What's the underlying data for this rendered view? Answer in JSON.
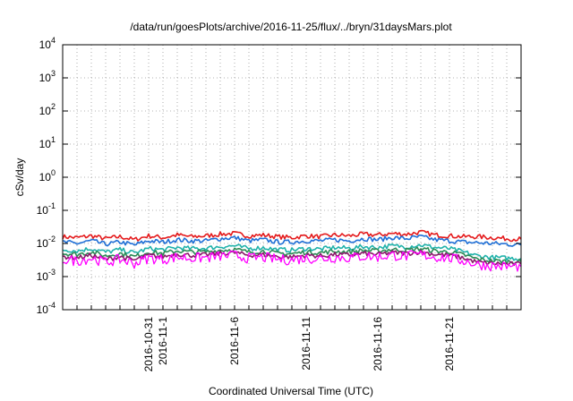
{
  "chart_data": {
    "type": "line",
    "title": "/data/run/goesPlots/archive/2016-11-25/flux/../bryn/31daysMars.plot",
    "xlabel": "Coordinated Universal Time (UTC)",
    "ylabel": "cSv/day",
    "yscale": "log",
    "ylim": [
      0.0001,
      10000
    ],
    "yticks": [
      {
        "value": 0.0001,
        "base": "10",
        "exp": "-4"
      },
      {
        "value": 0.001,
        "base": "10",
        "exp": "-3"
      },
      {
        "value": 0.01,
        "base": "10",
        "exp": "-2"
      },
      {
        "value": 0.1,
        "base": "10",
        "exp": "-1"
      },
      {
        "value": 1,
        "base": "10",
        "exp": "0"
      },
      {
        "value": 10,
        "base": "10",
        "exp": "1"
      },
      {
        "value": 100,
        "base": "10",
        "exp": "2"
      },
      {
        "value": 1000,
        "base": "10",
        "exp": "3"
      },
      {
        "value": 10000,
        "base": "10",
        "exp": "4"
      }
    ],
    "xlim": [
      "2016-10-25",
      "2016-11-26"
    ],
    "xticks": [
      {
        "date": "2016-10-31",
        "label": "2016-10-31"
      },
      {
        "date": "2016-11-01",
        "label": "2016-11-1"
      },
      {
        "date": "2016-11-06",
        "label": "2016-11-6"
      },
      {
        "date": "2016-11-11",
        "label": "2016-11-11"
      },
      {
        "date": "2016-11-16",
        "label": "2016-11-16"
      },
      {
        "date": "2016-11-21",
        "label": "2016-11-21"
      }
    ],
    "grid": true,
    "series_dates": [
      "2016-10-25",
      "2016-10-26",
      "2016-10-27",
      "2016-10-28",
      "2016-10-29",
      "2016-10-30",
      "2016-10-31",
      "2016-11-01",
      "2016-11-02",
      "2016-11-03",
      "2016-11-04",
      "2016-11-05",
      "2016-11-06",
      "2016-11-07",
      "2016-11-08",
      "2016-11-09",
      "2016-11-10",
      "2016-11-11",
      "2016-11-12",
      "2016-11-13",
      "2016-11-14",
      "2016-11-15",
      "2016-11-16",
      "2016-11-17",
      "2016-11-18",
      "2016-11-19",
      "2016-11-20",
      "2016-11-21",
      "2016-11-22",
      "2016-11-23",
      "2016-11-24",
      "2016-11-25",
      "2016-11-26"
    ],
    "series": [
      {
        "color": "#e41a1c",
        "values": [
          0.016,
          0.015,
          0.017,
          0.014,
          0.016,
          0.013,
          0.017,
          0.015,
          0.018,
          0.016,
          0.017,
          0.019,
          0.02,
          0.017,
          0.018,
          0.016,
          0.015,
          0.017,
          0.016,
          0.018,
          0.017,
          0.019,
          0.018,
          0.02,
          0.019,
          0.022,
          0.018,
          0.017,
          0.016,
          0.016,
          0.015,
          0.014,
          0.0135
        ]
      },
      {
        "color": "#1f6fd6",
        "values": [
          0.011,
          0.01,
          0.012,
          0.0095,
          0.011,
          0.009,
          0.012,
          0.011,
          0.013,
          0.012,
          0.012,
          0.014,
          0.015,
          0.012,
          0.013,
          0.011,
          0.011,
          0.012,
          0.012,
          0.013,
          0.012,
          0.014,
          0.013,
          0.015,
          0.014,
          0.016,
          0.013,
          0.012,
          0.011,
          0.0105,
          0.01,
          0.0095,
          0.009
        ]
      },
      {
        "color": "#20b2aa",
        "values": [
          0.0065,
          0.006,
          0.007,
          0.0055,
          0.0065,
          0.0052,
          0.007,
          0.0065,
          0.0075,
          0.007,
          0.0072,
          0.008,
          0.0085,
          0.007,
          0.0075,
          0.0065,
          0.0063,
          0.007,
          0.0068,
          0.0075,
          0.0072,
          0.008,
          0.0076,
          0.0085,
          0.008,
          0.009,
          0.0076,
          0.007,
          0.0055,
          0.0042,
          0.0038,
          0.0036,
          0.0035
        ]
      },
      {
        "color": "#2e8b57",
        "values": [
          0.005,
          0.0047,
          0.0055,
          0.0042,
          0.005,
          0.004,
          0.0055,
          0.005,
          0.006,
          0.0055,
          0.0056,
          0.0062,
          0.0066,
          0.0055,
          0.0058,
          0.005,
          0.0049,
          0.0055,
          0.0053,
          0.0058,
          0.0056,
          0.0062,
          0.0059,
          0.0066,
          0.0062,
          0.007,
          0.0059,
          0.0055,
          0.0045,
          0.0033,
          0.003,
          0.0029,
          0.0028
        ]
      },
      {
        "color": "#8b1a6b",
        "values": [
          0.004,
          0.0037,
          0.0044,
          0.0033,
          0.004,
          0.0031,
          0.0044,
          0.004,
          0.0048,
          0.0044,
          0.0045,
          0.005,
          0.0053,
          0.0044,
          0.0046,
          0.004,
          0.0039,
          0.0044,
          0.0042,
          0.0046,
          0.0045,
          0.005,
          0.0047,
          0.0053,
          0.005,
          0.0056,
          0.0047,
          0.0044,
          0.0036,
          0.0027,
          0.0025,
          0.0024,
          0.0024
        ]
      },
      {
        "color": "#ff00ff",
        "values": [
          0.0033,
          0.003,
          0.0036,
          0.0027,
          0.0033,
          0.0025,
          0.0036,
          0.0033,
          0.0039,
          0.0036,
          0.0037,
          0.0041,
          0.0044,
          0.0036,
          0.0038,
          0.0033,
          0.0032,
          0.0036,
          0.0035,
          0.0038,
          0.0037,
          0.0041,
          0.0039,
          0.0044,
          0.0041,
          0.0046,
          0.0039,
          0.0036,
          0.003,
          0.0023,
          0.0021,
          0.002,
          0.002
        ]
      }
    ]
  }
}
